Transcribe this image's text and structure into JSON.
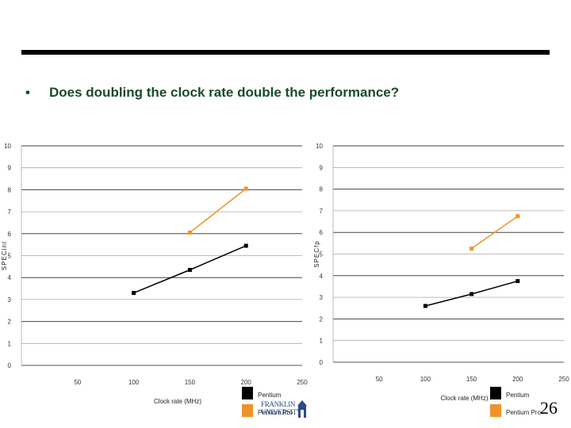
{
  "slide": {
    "bullet": "•",
    "question": "Does doubling the clock rate double the performance?",
    "page_number": "26",
    "logo_text": "FRANKLIN UNIVERSITY"
  },
  "colors": {
    "pentium": "#000000",
    "pentium_pro": "#f0922a",
    "title_text": "#1a4a2e",
    "gridline": "#888888"
  },
  "chart_data": [
    {
      "type": "line",
      "xlabel": "Clock rate (MHz)",
      "ylabel": "SPECint",
      "xlim": [
        0,
        250
      ],
      "ylim": [
        0,
        10
      ],
      "x_ticks": [
        "50",
        "100",
        "150",
        "200",
        "250"
      ],
      "y_ticks": [
        "0",
        "1",
        "2",
        "3",
        "4",
        "5",
        "6",
        "7",
        "8",
        "9",
        "10"
      ],
      "grid": true,
      "legend": "bottom-right",
      "series": [
        {
          "name": "Pentium",
          "color": "#000000",
          "x": [
            100,
            150,
            200
          ],
          "y": [
            3.3,
            4.35,
            5.45
          ]
        },
        {
          "name": "Pentium Pro",
          "color": "#f0922a",
          "x": [
            150,
            200
          ],
          "y": [
            6.05,
            8.05
          ]
        }
      ]
    },
    {
      "type": "line",
      "xlabel": "Clock rate (MHz)",
      "ylabel": "SPECfp",
      "xlim": [
        0,
        250
      ],
      "ylim": [
        0,
        10
      ],
      "x_ticks": [
        "50",
        "100",
        "150",
        "200",
        "250"
      ],
      "y_ticks": [
        "0",
        "1",
        "2",
        "3",
        "4",
        "5",
        "6",
        "7",
        "8",
        "9",
        "10"
      ],
      "grid": true,
      "legend": "bottom-right",
      "series": [
        {
          "name": "Pentium",
          "color": "#000000",
          "x": [
            100,
            150,
            200
          ],
          "y": [
            2.6,
            3.15,
            3.75
          ]
        },
        {
          "name": "Pentium Pro",
          "color": "#f0922a",
          "x": [
            150,
            200
          ],
          "y": [
            5.25,
            6.75
          ]
        }
      ]
    }
  ]
}
